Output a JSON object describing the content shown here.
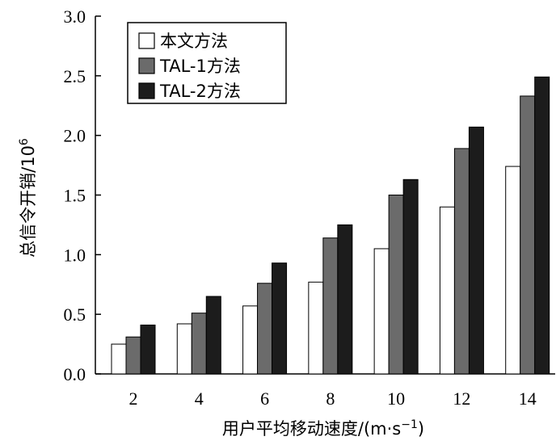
{
  "chart_data": {
    "type": "bar",
    "categories": [
      "2",
      "4",
      "6",
      "8",
      "10",
      "12",
      "14"
    ],
    "series": [
      {
        "name": "本文方法",
        "color": "#ffffff",
        "values": [
          0.25,
          0.42,
          0.57,
          0.77,
          1.05,
          1.4,
          1.74
        ]
      },
      {
        "name": "TAL-1方法",
        "color": "#6b6b6b",
        "values": [
          0.31,
          0.51,
          0.76,
          1.14,
          1.5,
          1.89,
          2.33
        ]
      },
      {
        "name": "TAL-2方法",
        "color": "#1c1c1c",
        "values": [
          0.41,
          0.65,
          0.93,
          1.25,
          1.63,
          2.07,
          2.49
        ]
      }
    ],
    "yticks": [
      "0.0",
      "0.5",
      "1.0",
      "1.5",
      "2.0",
      "2.5",
      "3.0"
    ],
    "ylim": [
      0,
      3.0
    ],
    "xlabel": "用户平均移动速度/(m·s",
    "xlabel_sup": "−1",
    "xlabel_end": ")",
    "ylabel": "总信令开销/10",
    "ylabel_sup": "6",
    "grid": false,
    "legend_position": "top-left"
  }
}
